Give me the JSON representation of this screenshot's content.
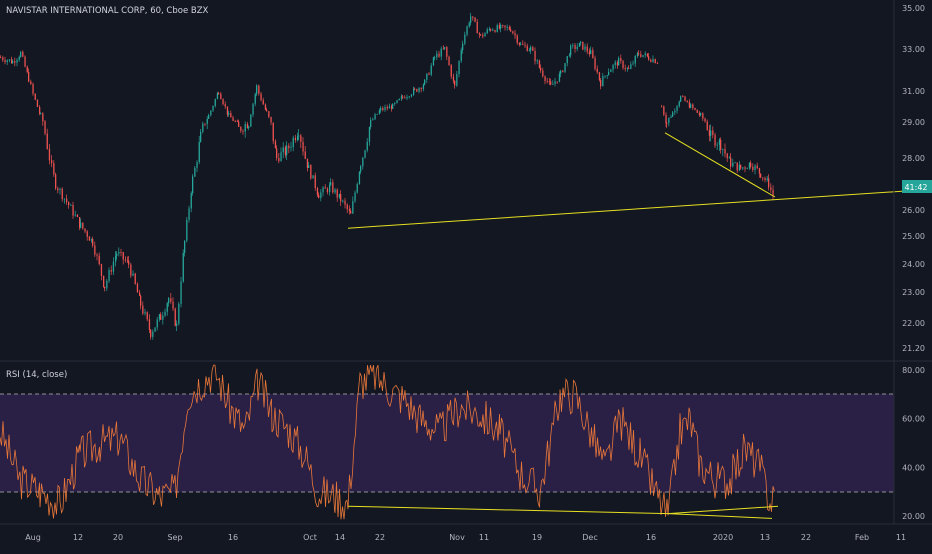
{
  "header": {
    "symbol_title": "NAVISTAR INTERNATIONAL CORP, 60, Cboe BZX",
    "rsi_title": "RSI (14, close)"
  },
  "price_axis": {
    "ticks": [
      "35.00",
      "33.00",
      "31.00",
      "29.00",
      "28.00",
      "26.00",
      "25.00",
      "24.00",
      "23.00",
      "22.00",
      "21.20"
    ],
    "last_price_label": "41:42"
  },
  "rsi_axis": {
    "ticks": [
      "80.00",
      "60.00",
      "40.00",
      "20.00"
    ]
  },
  "time_axis": {
    "ticks": [
      "Aug",
      "12",
      "20",
      "Sep",
      "16",
      "Oct",
      "14",
      "22",
      "Nov",
      "11",
      "19",
      "Dec",
      "16",
      "2020",
      "13",
      "22",
      "Feb",
      "11"
    ]
  },
  "colors": {
    "background": "#131722",
    "up": "#26a69a",
    "down": "#ef5350",
    "trendline": "#e6e020",
    "rsi_line": "#e8773a",
    "rsi_band": "#2a1f45",
    "label_bg": "#26a69a"
  },
  "chart_data": [
    {
      "type": "candlestick",
      "title": "NAVISTAR INTERNATIONAL CORP, 60, Cboe BZX",
      "x_labels": [
        "Aug",
        "12",
        "20",
        "Sep",
        "16",
        "Oct",
        "14",
        "22",
        "Nov",
        "11",
        "19",
        "Dec",
        "16",
        "2020",
        "13",
        "22",
        "Feb",
        "11"
      ],
      "price_trace": [
        [
          0,
          32.6
        ],
        [
          12,
          32.4
        ],
        [
          20,
          32.8
        ],
        [
          28,
          31.6
        ],
        [
          40,
          29.4
        ],
        [
          55,
          27.0
        ],
        [
          68,
          26.2
        ],
        [
          80,
          25.4
        ],
        [
          92,
          24.8
        ],
        [
          104,
          23.2
        ],
        [
          116,
          24.4
        ],
        [
          128,
          24.0
        ],
        [
          140,
          22.6
        ],
        [
          150,
          21.7
        ],
        [
          160,
          22.2
        ],
        [
          168,
          22.8
        ],
        [
          176,
          21.9
        ],
        [
          184,
          24.8
        ],
        [
          192,
          27.2
        ],
        [
          200,
          28.6
        ],
        [
          208,
          29.4
        ],
        [
          218,
          31.0
        ],
        [
          228,
          29.4
        ],
        [
          238,
          28.8
        ],
        [
          248,
          29.0
        ],
        [
          256,
          31.2
        ],
        [
          266,
          29.6
        ],
        [
          276,
          28.0
        ],
        [
          286,
          28.2
        ],
        [
          298,
          28.8
        ],
        [
          308,
          27.6
        ],
        [
          318,
          26.6
        ],
        [
          330,
          26.9
        ],
        [
          340,
          26.4
        ],
        [
          350,
          25.8
        ],
        [
          360,
          27.8
        ],
        [
          370,
          29.0
        ],
        [
          380,
          29.8
        ],
        [
          392,
          30.0
        ],
        [
          402,
          30.6
        ],
        [
          414,
          31.0
        ],
        [
          424,
          31.4
        ],
        [
          434,
          32.6
        ],
        [
          444,
          33.0
        ],
        [
          454,
          31.2
        ],
        [
          462,
          33.4
        ],
        [
          470,
          34.6
        ],
        [
          480,
          33.6
        ],
        [
          490,
          34.0
        ],
        [
          500,
          34.0
        ],
        [
          510,
          34.0
        ],
        [
          520,
          33.2
        ],
        [
          530,
          33.0
        ],
        [
          540,
          32.0
        ],
        [
          550,
          31.2
        ],
        [
          560,
          31.8
        ],
        [
          570,
          33.0
        ],
        [
          580,
          33.2
        ],
        [
          590,
          32.8
        ],
        [
          600,
          31.4
        ],
        [
          608,
          32.0
        ],
        [
          618,
          32.4
        ],
        [
          628,
          32.0
        ],
        [
          638,
          32.8
        ],
        [
          648,
          32.6
        ],
        [
          658,
          32.4
        ]
      ],
      "price_trace_2": [
        [
          661,
          30.0
        ],
        [
          666,
          29.0
        ],
        [
          672,
          29.6
        ],
        [
          680,
          30.6
        ],
        [
          690,
          30.0
        ],
        [
          700,
          29.4
        ],
        [
          710,
          28.6
        ],
        [
          720,
          28.4
        ],
        [
          730,
          27.8
        ],
        [
          740,
          27.6
        ],
        [
          750,
          27.8
        ],
        [
          760,
          27.4
        ],
        [
          768,
          27.0
        ],
        [
          774,
          26.4
        ]
      ],
      "trendlines": [
        {
          "from": [
            348,
            25.3
          ],
          "to": [
            932,
            26.8
          ]
        },
        {
          "from": [
            665,
            28.7
          ],
          "to": [
            775,
            26.5
          ]
        }
      ],
      "y_ticks": [
        35.0,
        33.0,
        31.0,
        29.0,
        28.0,
        26.0,
        25.0,
        24.0,
        23.0,
        22.0,
        21.2
      ]
    },
    {
      "type": "line",
      "title": "RSI (14, close)",
      "y_ticks": [
        80,
        60,
        40,
        20
      ],
      "band": [
        30,
        70
      ],
      "rsi_trace": [
        [
          0,
          55
        ],
        [
          20,
          35
        ],
        [
          40,
          30
        ],
        [
          60,
          25
        ],
        [
          80,
          45
        ],
        [
          100,
          50
        ],
        [
          120,
          52
        ],
        [
          140,
          35
        ],
        [
          160,
          28
        ],
        [
          175,
          30
        ],
        [
          188,
          70
        ],
        [
          200,
          75
        ],
        [
          215,
          80
        ],
        [
          230,
          65
        ],
        [
          245,
          55
        ],
        [
          258,
          75
        ],
        [
          272,
          62
        ],
        [
          290,
          55
        ],
        [
          305,
          45
        ],
        [
          318,
          30
        ],
        [
          335,
          28
        ],
        [
          348,
          25
        ],
        [
          360,
          75
        ],
        [
          375,
          78
        ],
        [
          390,
          72
        ],
        [
          405,
          68
        ],
        [
          420,
          60
        ],
        [
          440,
          55
        ],
        [
          460,
          65
        ],
        [
          480,
          62
        ],
        [
          500,
          55
        ],
        [
          520,
          38
        ],
        [
          540,
          30
        ],
        [
          560,
          70
        ],
        [
          575,
          70
        ],
        [
          590,
          55
        ],
        [
          605,
          40
        ],
        [
          620,
          60
        ],
        [
          640,
          45
        ],
        [
          655,
          30
        ],
        [
          668,
          20
        ],
        [
          680,
          55
        ],
        [
          690,
          60
        ],
        [
          700,
          42
        ],
        [
          715,
          35
        ],
        [
          730,
          35
        ],
        [
          745,
          48
        ],
        [
          760,
          40
        ],
        [
          770,
          26
        ],
        [
          775,
          28
        ]
      ],
      "trendlines": [
        {
          "from": [
            348,
            24
          ],
          "to": [
            668,
            21
          ]
        },
        {
          "from": [
            668,
            21
          ],
          "to": [
            778,
            24
          ]
        },
        {
          "from": [
            668,
            21
          ],
          "to": [
            772,
            19
          ]
        }
      ]
    }
  ]
}
